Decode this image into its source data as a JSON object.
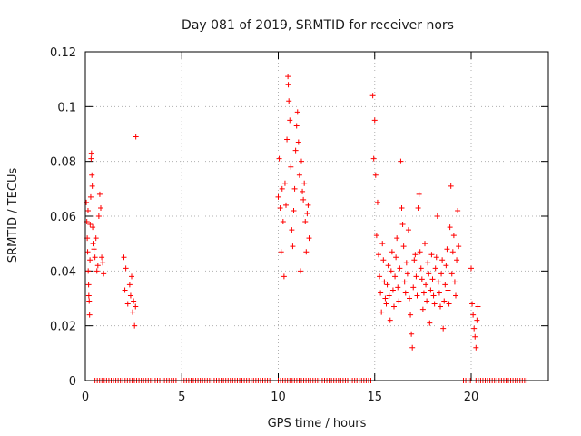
{
  "chart_data": {
    "type": "scatter",
    "title": "Day 081 of 2019, SRMTID for receiver nors",
    "xlabel": "GPS time / hours",
    "ylabel": "SRMTID / TECUs",
    "xlim": [
      0,
      24
    ],
    "ylim": [
      0,
      0.12
    ],
    "xticks": [
      0,
      5,
      10,
      15,
      20
    ],
    "xtick_labels": [
      "0",
      "5",
      "10",
      "15",
      "20"
    ],
    "yticks": [
      0,
      0.02,
      0.04,
      0.06,
      0.08,
      0.1,
      0.12
    ],
    "ytick_labels": [
      "0",
      "0.02",
      "0.04",
      "0.06",
      "0.08",
      "0.1",
      "0.12"
    ],
    "grid": true,
    "marker": "+",
    "color": "#ff0000",
    "series": [
      {
        "name": "SRMTID",
        "points": [
          [
            0.05,
            0.065
          ],
          [
            0.08,
            0.058
          ],
          [
            0.1,
            0.052
          ],
          [
            0.12,
            0.047
          ],
          [
            0.14,
            0.062
          ],
          [
            0.15,
            0.04
          ],
          [
            0.17,
            0.035
          ],
          [
            0.18,
            0.031
          ],
          [
            0.2,
            0.029
          ],
          [
            0.22,
            0.024
          ],
          [
            0.24,
            0.044
          ],
          [
            0.25,
            0.057
          ],
          [
            0.28,
            0.067
          ],
          [
            0.3,
            0.081
          ],
          [
            0.32,
            0.083
          ],
          [
            0.34,
            0.075
          ],
          [
            0.36,
            0.071
          ],
          [
            0.38,
            0.056
          ],
          [
            0.4,
            0.05
          ],
          [
            0.45,
            0.048
          ],
          [
            0.5,
            0.045
          ],
          [
            0.55,
            0.052
          ],
          [
            0.6,
            0.04
          ],
          [
            0.65,
            0.042
          ],
          [
            0.7,
            0.06
          ],
          [
            0.75,
            0.068
          ],
          [
            0.8,
            0.063
          ],
          [
            0.85,
            0.045
          ],
          [
            0.9,
            0.043
          ],
          [
            0.95,
            0.039
          ],
          [
            2.0,
            0.045
          ],
          [
            2.05,
            0.033
          ],
          [
            2.1,
            0.041
          ],
          [
            2.2,
            0.028
          ],
          [
            2.3,
            0.035
          ],
          [
            2.35,
            0.031
          ],
          [
            2.4,
            0.038
          ],
          [
            2.45,
            0.025
          ],
          [
            2.5,
            0.029
          ],
          [
            2.55,
            0.02
          ],
          [
            2.6,
            0.027
          ],
          [
            2.62,
            0.089
          ],
          [
            10.0,
            0.067
          ],
          [
            10.05,
            0.081
          ],
          [
            10.1,
            0.063
          ],
          [
            10.15,
            0.047
          ],
          [
            10.2,
            0.07
          ],
          [
            10.25,
            0.058
          ],
          [
            10.3,
            0.038
          ],
          [
            10.35,
            0.072
          ],
          [
            10.4,
            0.064
          ],
          [
            10.45,
            0.088
          ],
          [
            10.5,
            0.111
          ],
          [
            10.52,
            0.108
          ],
          [
            10.55,
            0.102
          ],
          [
            10.6,
            0.095
          ],
          [
            10.65,
            0.078
          ],
          [
            10.7,
            0.055
          ],
          [
            10.75,
            0.049
          ],
          [
            10.8,
            0.062
          ],
          [
            10.85,
            0.07
          ],
          [
            10.9,
            0.084
          ],
          [
            10.95,
            0.093
          ],
          [
            11.0,
            0.098
          ],
          [
            11.05,
            0.087
          ],
          [
            11.1,
            0.075
          ],
          [
            11.15,
            0.04
          ],
          [
            11.2,
            0.08
          ],
          [
            11.25,
            0.069
          ],
          [
            11.3,
            0.066
          ],
          [
            11.35,
            0.072
          ],
          [
            11.4,
            0.058
          ],
          [
            11.45,
            0.047
          ],
          [
            11.5,
            0.061
          ],
          [
            11.55,
            0.064
          ],
          [
            11.6,
            0.052
          ],
          [
            14.9,
            0.104
          ],
          [
            14.95,
            0.081
          ],
          [
            15.0,
            0.095
          ],
          [
            15.05,
            0.075
          ],
          [
            15.1,
            0.053
          ],
          [
            15.15,
            0.065
          ],
          [
            15.2,
            0.046
          ],
          [
            15.25,
            0.038
          ],
          [
            15.3,
            0.032
          ],
          [
            15.35,
            0.025
          ],
          [
            15.4,
            0.05
          ],
          [
            15.45,
            0.044
          ],
          [
            15.5,
            0.036
          ],
          [
            15.55,
            0.03
          ],
          [
            15.6,
            0.028
          ],
          [
            15.65,
            0.035
          ],
          [
            15.7,
            0.042
          ],
          [
            15.75,
            0.031
          ],
          [
            15.8,
            0.022
          ],
          [
            15.85,
            0.04
          ],
          [
            15.9,
            0.047
          ],
          [
            15.95,
            0.033
          ],
          [
            16.0,
            0.027
          ],
          [
            16.05,
            0.038
          ],
          [
            16.1,
            0.045
          ],
          [
            16.15,
            0.052
          ],
          [
            16.2,
            0.034
          ],
          [
            16.25,
            0.029
          ],
          [
            16.3,
            0.041
          ],
          [
            16.35,
            0.08
          ],
          [
            16.4,
            0.063
          ],
          [
            16.45,
            0.057
          ],
          [
            16.5,
            0.049
          ],
          [
            16.55,
            0.036
          ],
          [
            16.6,
            0.032
          ],
          [
            16.65,
            0.043
          ],
          [
            16.7,
            0.039
          ],
          [
            16.75,
            0.055
          ],
          [
            16.8,
            0.03
          ],
          [
            16.85,
            0.024
          ],
          [
            16.9,
            0.017
          ],
          [
            16.95,
            0.012
          ],
          [
            17.0,
            0.034
          ],
          [
            17.05,
            0.044
          ],
          [
            17.1,
            0.046
          ],
          [
            17.15,
            0.038
          ],
          [
            17.2,
            0.031
          ],
          [
            17.25,
            0.063
          ],
          [
            17.3,
            0.068
          ],
          [
            17.35,
            0.047
          ],
          [
            17.4,
            0.041
          ],
          [
            17.45,
            0.037
          ],
          [
            17.5,
            0.026
          ],
          [
            17.55,
            0.032
          ],
          [
            17.6,
            0.05
          ],
          [
            17.65,
            0.035
          ],
          [
            17.7,
            0.029
          ],
          [
            17.75,
            0.043
          ],
          [
            17.8,
            0.039
          ],
          [
            17.85,
            0.021
          ],
          [
            17.9,
            0.033
          ],
          [
            17.95,
            0.046
          ],
          [
            18.0,
            0.037
          ],
          [
            18.05,
            0.031
          ],
          [
            18.1,
            0.028
          ],
          [
            18.15,
            0.041
          ],
          [
            18.2,
            0.045
          ],
          [
            18.25,
            0.06
          ],
          [
            18.3,
            0.036
          ],
          [
            18.35,
            0.032
          ],
          [
            18.4,
            0.027
          ],
          [
            18.45,
            0.039
          ],
          [
            18.5,
            0.044
          ],
          [
            18.55,
            0.019
          ],
          [
            18.6,
            0.029
          ],
          [
            18.65,
            0.035
          ],
          [
            18.7,
            0.042
          ],
          [
            18.75,
            0.048
          ],
          [
            18.8,
            0.033
          ],
          [
            18.85,
            0.028
          ],
          [
            18.9,
            0.056
          ],
          [
            18.95,
            0.071
          ],
          [
            19.0,
            0.039
          ],
          [
            19.05,
            0.047
          ],
          [
            19.1,
            0.053
          ],
          [
            19.15,
            0.036
          ],
          [
            19.2,
            0.031
          ],
          [
            19.25,
            0.044
          ],
          [
            19.3,
            0.062
          ],
          [
            19.35,
            0.049
          ],
          [
            20.0,
            0.041
          ],
          [
            20.05,
            0.028
          ],
          [
            20.1,
            0.024
          ],
          [
            20.15,
            0.019
          ],
          [
            20.2,
            0.016
          ],
          [
            20.25,
            0.012
          ],
          [
            20.3,
            0.022
          ],
          [
            20.35,
            0.027
          ]
        ]
      }
    ],
    "zero_runs": [
      [
        0.5,
        4.8
      ],
      [
        5.0,
        9.6
      ],
      [
        10.0,
        14.8
      ],
      [
        19.6,
        20.05
      ],
      [
        20.25,
        23.0
      ]
    ],
    "zero_value": 0
  }
}
